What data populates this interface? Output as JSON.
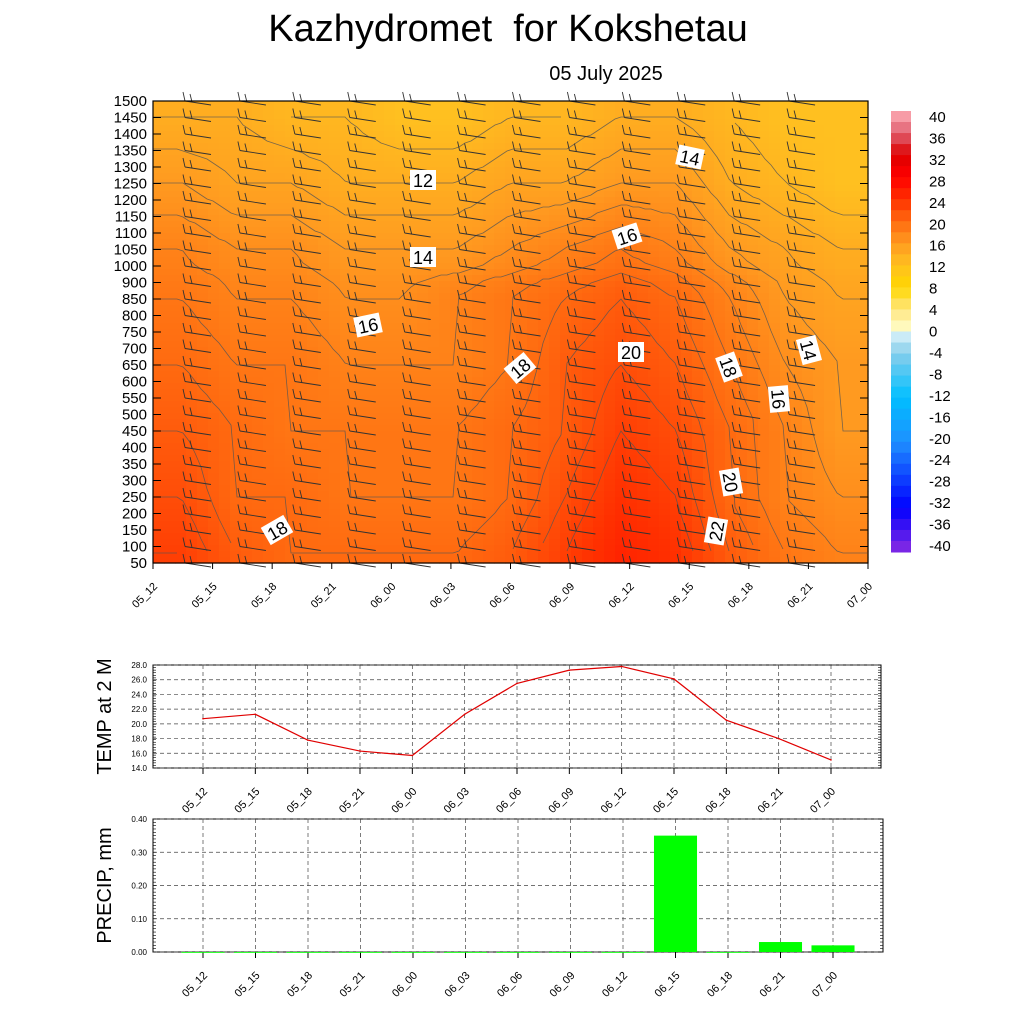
{
  "title": "Kazhydromet  for Kokshetau",
  "subtitle": "05 July 2025",
  "chart_data": [
    {
      "type": "heatmap",
      "description_type": "time-height cross section with filled temperature contours and wind barbs",
      "x_ticks": [
        "05_12",
        "05_15",
        "05_18",
        "05_21",
        "06_00",
        "06_03",
        "06_06",
        "06_09",
        "06_12",
        "06_15",
        "06_18",
        "06_21",
        "07_00"
      ],
      "y_levels": [
        50,
        100,
        150,
        200,
        250,
        300,
        350,
        400,
        450,
        500,
        550,
        600,
        650,
        700,
        750,
        800,
        850,
        900,
        1000,
        1050,
        1100,
        1150,
        1200,
        1250,
        1300,
        1350,
        1400,
        1450,
        1500
      ],
      "colorbar": {
        "labels": [
          40,
          36,
          32,
          28,
          24,
          20,
          16,
          12,
          8,
          4,
          0,
          -4,
          -8,
          -12,
          -16,
          -20,
          -24,
          -28,
          -32,
          -36,
          -40
        ]
      },
      "contour_labels": [
        "12",
        "14",
        "14",
        "16",
        "16",
        "18",
        "18",
        "20",
        "18",
        "16",
        "14",
        "20",
        "22"
      ],
      "temperature_grid_c": [
        [
          23,
          21,
          20,
          20,
          20,
          20,
          21,
          23,
          25,
          24,
          21,
          19,
          18
        ],
        [
          22,
          20,
          20,
          19,
          19,
          19,
          20,
          22,
          24,
          23,
          20,
          18,
          17
        ],
        [
          21,
          20,
          19,
          19,
          19,
          19,
          20,
          21,
          23,
          22,
          20,
          18,
          16
        ],
        [
          20,
          19,
          19,
          18,
          18,
          18,
          19,
          21,
          22,
          21,
          19,
          17,
          16
        ],
        [
          19,
          18,
          18,
          17,
          17,
          18,
          19,
          20,
          21,
          20,
          18,
          16,
          15
        ],
        [
          18,
          17,
          17,
          16,
          16,
          16,
          17,
          18,
          19,
          18,
          16,
          15,
          14
        ],
        [
          16,
          15,
          15,
          14,
          14,
          14,
          15,
          15,
          16,
          16,
          14,
          13,
          12
        ],
        [
          14,
          14,
          13,
          13,
          12,
          12,
          13,
          13,
          14,
          14,
          13,
          12,
          12
        ]
      ],
      "grid_level_rows": [
        75,
        250,
        450,
        650,
        850,
        1050,
        1250,
        1450
      ]
    },
    {
      "type": "line",
      "ylabel": "TEMP at 2 M",
      "y_ticks": [
        "28.0",
        "26.0",
        "24.0",
        "22.0",
        "20.0",
        "18.0",
        "16.0",
        "14.0"
      ],
      "ylim": [
        14,
        28
      ],
      "categories": [
        "05_12",
        "05_15",
        "05_18",
        "05_21",
        "06_00",
        "06_03",
        "06_06",
        "06_09",
        "06_12",
        "06_15",
        "06_18",
        "06_21",
        "07_00"
      ],
      "values": [
        20.7,
        21.3,
        17.8,
        16.3,
        15.7,
        21.3,
        25.5,
        27.3,
        27.8,
        26.1,
        20.5,
        18.0,
        15.1
      ],
      "color": "#e00000"
    },
    {
      "type": "bar",
      "ylabel": "PRECIP, mm",
      "y_ticks": [
        "0.40",
        "0.30",
        "0.20",
        "0.10",
        "0.00"
      ],
      "ylim": [
        0,
        0.4
      ],
      "categories": [
        "05_12",
        "05_15",
        "05_18",
        "05_21",
        "06_00",
        "06_03",
        "06_06",
        "06_09",
        "06_12",
        "06_15",
        "06_18",
        "06_21",
        "07_00"
      ],
      "values": [
        0,
        0,
        0,
        0,
        0,
        0,
        0,
        0,
        0,
        0.35,
        0,
        0.03,
        0.02
      ],
      "color": "#00ff00"
    }
  ]
}
